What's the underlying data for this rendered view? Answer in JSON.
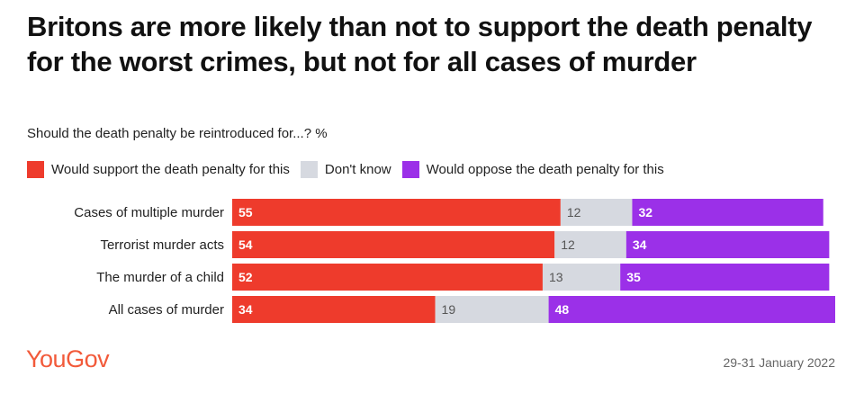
{
  "chart_data": {
    "type": "bar",
    "stacked": true,
    "orientation": "horizontal",
    "title": "Britons are more likely than not to support the death penalty for the worst crimes, but not for all cases of murder",
    "subtitle": "Should the death penalty be reintroduced for...? %",
    "categories": [
      "Cases of multiple murder",
      "Terrorist murder acts",
      "The murder of a child",
      "All cases of murder"
    ],
    "series": [
      {
        "name": "Would support the death penalty for this",
        "color": "#ee3b2c",
        "label_color": "#ffffff",
        "values": [
          55,
          54,
          52,
          34
        ]
      },
      {
        "name": "Don't know",
        "color": "#d6d9e0",
        "label_color": "#555555",
        "values": [
          12,
          12,
          13,
          19
        ]
      },
      {
        "name": "Would oppose the death penalty for this",
        "color": "#9b30e8",
        "label_color": "#ffffff",
        "values": [
          32,
          34,
          35,
          48
        ]
      }
    ],
    "xlim": [
      0,
      101
    ],
    "grid": false,
    "legend": "top-left"
  },
  "footer": {
    "brand": "YouGov",
    "date": "29-31 January 2022"
  }
}
